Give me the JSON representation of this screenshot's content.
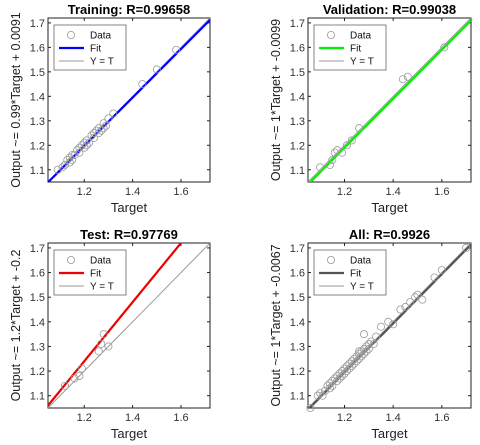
{
  "chart_data": [
    {
      "type": "scatter",
      "title": "Training: R=0.99658",
      "xlabel": "Target",
      "ylabel": "Output ~= 0.99*Target + 0.0091",
      "xlim": [
        1.05,
        1.72
      ],
      "ylim": [
        1.05,
        1.72
      ],
      "xticks": [
        "1.2",
        "1.4",
        "1.6"
      ],
      "yticks": [
        "1.1",
        "1.2",
        "1.3",
        "1.4",
        "1.5",
        "1.6",
        "1.7"
      ],
      "fit": {
        "slope": 0.99,
        "intercept": 0.0091,
        "color": "#0000ff"
      },
      "legend": {
        "position": "top-left",
        "entries": [
          "Data",
          "Fit",
          "Y = T"
        ]
      },
      "points": [
        [
          1.09,
          1.1
        ],
        [
          1.11,
          1.11
        ],
        [
          1.12,
          1.12
        ],
        [
          1.13,
          1.14
        ],
        [
          1.14,
          1.15
        ],
        [
          1.15,
          1.16
        ],
        [
          1.16,
          1.16
        ],
        [
          1.17,
          1.18
        ],
        [
          1.18,
          1.19
        ],
        [
          1.19,
          1.2
        ],
        [
          1.2,
          1.21
        ],
        [
          1.21,
          1.22
        ],
        [
          1.22,
          1.21
        ],
        [
          1.23,
          1.24
        ],
        [
          1.24,
          1.23
        ],
        [
          1.25,
          1.26
        ],
        [
          1.26,
          1.27
        ],
        [
          1.27,
          1.26
        ],
        [
          1.28,
          1.29
        ],
        [
          1.29,
          1.28
        ],
        [
          1.3,
          1.31
        ],
        [
          1.15,
          1.14
        ],
        [
          1.18,
          1.17
        ],
        [
          1.21,
          1.2
        ],
        [
          1.26,
          1.25
        ],
        [
          1.32,
          1.33
        ],
        [
          1.14,
          1.13
        ],
        [
          1.2,
          1.19
        ],
        [
          1.24,
          1.25
        ],
        [
          1.28,
          1.27
        ],
        [
          1.44,
          1.45
        ],
        [
          1.5,
          1.51
        ],
        [
          1.58,
          1.59
        ]
      ]
    },
    {
      "type": "scatter",
      "title": "Validation: R=0.99038",
      "xlabel": "Target",
      "ylabel": "Output ~= 1*Target + -0.0099",
      "xlim": [
        1.05,
        1.72
      ],
      "ylim": [
        1.05,
        1.72
      ],
      "xticks": [
        "1.2",
        "1.4",
        "1.6"
      ],
      "yticks": [
        "1.1",
        "1.2",
        "1.3",
        "1.4",
        "1.5",
        "1.6",
        "1.7"
      ],
      "fit": {
        "slope": 1.0,
        "intercept": -0.0099,
        "color": "#00ee00"
      },
      "legend": {
        "position": "top-left",
        "entries": [
          "Data",
          "Fit",
          "Y = T"
        ]
      },
      "points": [
        [
          1.1,
          1.11
        ],
        [
          1.14,
          1.12
        ],
        [
          1.15,
          1.14
        ],
        [
          1.16,
          1.17
        ],
        [
          1.17,
          1.18
        ],
        [
          1.19,
          1.17
        ],
        [
          1.21,
          1.2
        ],
        [
          1.23,
          1.22
        ],
        [
          1.26,
          1.27
        ],
        [
          1.44,
          1.47
        ],
        [
          1.46,
          1.48
        ],
        [
          1.61,
          1.6
        ]
      ]
    },
    {
      "type": "scatter",
      "title": "Test: R=0.97769",
      "xlabel": "Target",
      "ylabel": "Output ~= 1.2*Target + -0.2",
      "xlim": [
        1.05,
        1.72
      ],
      "ylim": [
        1.05,
        1.72
      ],
      "xticks": [
        "1.2",
        "1.4",
        "1.6"
      ],
      "yticks": [
        "1.1",
        "1.2",
        "1.3",
        "1.4",
        "1.5",
        "1.6",
        "1.7"
      ],
      "fit": {
        "slope": 1.2,
        "intercept": -0.2,
        "color": "#ee0000"
      },
      "legend": {
        "position": "top-left",
        "entries": [
          "Data",
          "Fit",
          "Y = T"
        ]
      },
      "points": [
        [
          1.12,
          1.14
        ],
        [
          1.16,
          1.17
        ],
        [
          1.18,
          1.18
        ],
        [
          1.19,
          1.21
        ],
        [
          1.26,
          1.28
        ],
        [
          1.27,
          1.31
        ],
        [
          1.28,
          1.35
        ],
        [
          1.3,
          1.3
        ]
      ]
    },
    {
      "type": "scatter",
      "title": "All: R=0.9926",
      "xlabel": "Target",
      "ylabel": "Output ~= 1*Target + -0.0067",
      "xlim": [
        1.05,
        1.72
      ],
      "ylim": [
        1.05,
        1.72
      ],
      "xticks": [
        "1.2",
        "1.4",
        "1.6"
      ],
      "yticks": [
        "1.1",
        "1.2",
        "1.3",
        "1.4",
        "1.5",
        "1.6",
        "1.7"
      ],
      "fit": {
        "slope": 1.0,
        "intercept": -0.0067,
        "color": "#555555"
      },
      "legend": {
        "position": "top-left",
        "entries": [
          "Data",
          "Fit",
          "Y = T"
        ]
      },
      "points": [
        [
          1.06,
          1.05
        ],
        [
          1.09,
          1.1
        ],
        [
          1.1,
          1.11
        ],
        [
          1.11,
          1.1
        ],
        [
          1.12,
          1.12
        ],
        [
          1.13,
          1.14
        ],
        [
          1.14,
          1.13
        ],
        [
          1.14,
          1.15
        ],
        [
          1.15,
          1.16
        ],
        [
          1.15,
          1.14
        ],
        [
          1.16,
          1.17
        ],
        [
          1.17,
          1.16
        ],
        [
          1.17,
          1.18
        ],
        [
          1.18,
          1.19
        ],
        [
          1.18,
          1.17
        ],
        [
          1.19,
          1.2
        ],
        [
          1.19,
          1.18
        ],
        [
          1.2,
          1.21
        ],
        [
          1.2,
          1.19
        ],
        [
          1.21,
          1.22
        ],
        [
          1.21,
          1.2
        ],
        [
          1.22,
          1.21
        ],
        [
          1.22,
          1.23
        ],
        [
          1.23,
          1.24
        ],
        [
          1.23,
          1.22
        ],
        [
          1.24,
          1.25
        ],
        [
          1.24,
          1.23
        ],
        [
          1.25,
          1.26
        ],
        [
          1.25,
          1.24
        ],
        [
          1.26,
          1.27
        ],
        [
          1.26,
          1.25
        ],
        [
          1.27,
          1.28
        ],
        [
          1.27,
          1.26
        ],
        [
          1.28,
          1.29
        ],
        [
          1.28,
          1.27
        ],
        [
          1.29,
          1.3
        ],
        [
          1.29,
          1.28
        ],
        [
          1.3,
          1.31
        ],
        [
          1.3,
          1.29
        ],
        [
          1.31,
          1.32
        ],
        [
          1.32,
          1.31
        ],
        [
          1.33,
          1.34
        ],
        [
          1.35,
          1.38
        ],
        [
          1.38,
          1.4
        ],
        [
          1.4,
          1.39
        ],
        [
          1.43,
          1.45
        ],
        [
          1.45,
          1.46
        ],
        [
          1.47,
          1.48
        ],
        [
          1.49,
          1.5
        ],
        [
          1.5,
          1.51
        ],
        [
          1.52,
          1.49
        ],
        [
          1.57,
          1.58
        ],
        [
          1.6,
          1.61
        ],
        [
          1.7,
          1.7
        ],
        [
          1.28,
          1.35
        ],
        [
          1.26,
          1.28
        ]
      ]
    }
  ]
}
